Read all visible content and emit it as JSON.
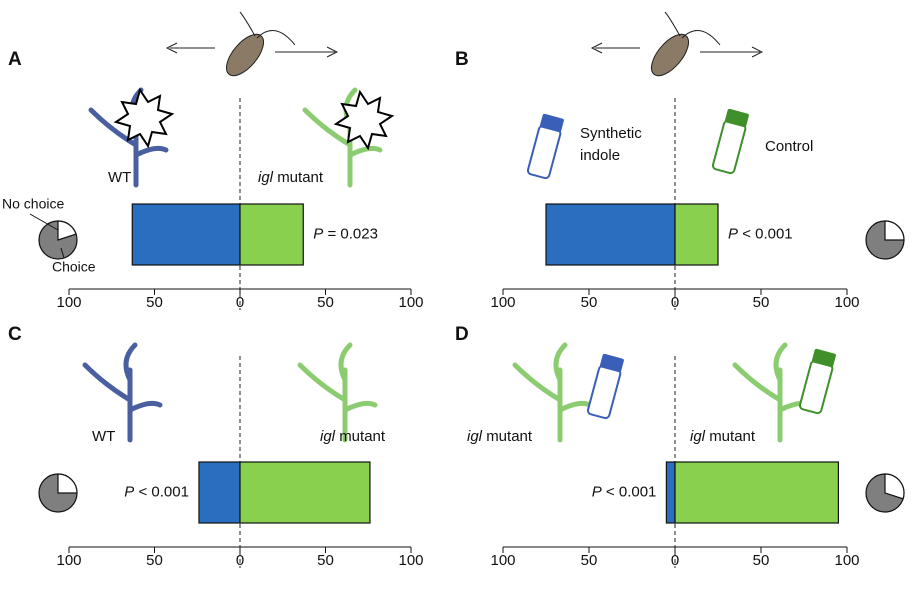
{
  "chart_data": [
    {
      "type": "diverging_bar",
      "panel": "A",
      "series": [
        {
          "name": "WT",
          "color": "#2a6ebf",
          "values": [
            63
          ]
        },
        {
          "name_prefix": "igl",
          "name": "mutant",
          "color": "#88d04e",
          "values": [
            37
          ]
        }
      ],
      "p_prefix": "P",
      "p_label": "= 0.023",
      "pie_labels": [
        "No choice",
        "Choice"
      ],
      "pie_values": [
        20,
        80
      ],
      "xlim": [
        -100,
        100
      ],
      "xticks": [
        {
          "value": -100,
          "label": "100"
        },
        {
          "value": -50,
          "label": "50"
        },
        0,
        50,
        100
      ]
    },
    {
      "type": "diverging_bar",
      "panel": "B",
      "series": [
        {
          "name": "Synthetic",
          "name_line2": "indole",
          "color": "#2a6ebf",
          "values": [
            75
          ]
        },
        {
          "name": "Control",
          "color": "#88d04e",
          "values": [
            25
          ]
        }
      ],
      "p_prefix": "P",
      "p_label": "< 0.001",
      "pie_values": [
        25,
        75
      ],
      "xlim": [
        -100,
        100
      ],
      "xticks": [
        {
          "value": -100,
          "label": "100"
        },
        {
          "value": -50,
          "label": "50"
        },
        0,
        50,
        100
      ]
    },
    {
      "type": "diverging_bar",
      "panel": "C",
      "series": [
        {
          "name": "WT",
          "color": "#2a6ebf",
          "values": [
            24
          ]
        },
        {
          "name_prefix": "igl",
          "name": "mutant",
          "color": "#88d04e",
          "values": [
            76
          ]
        }
      ],
      "p_prefix": "P",
      "p_label": "< 0.001",
      "pie_values": [
        25,
        75
      ],
      "xlim": [
        -100,
        100
      ],
      "xticks": [
        {
          "value": -100,
          "label": "100"
        },
        {
          "value": -50,
          "label": "50"
        },
        0,
        50,
        100
      ]
    },
    {
      "type": "diverging_bar",
      "panel": "D",
      "series": [
        {
          "name_prefix": "igl",
          "name": "mutant",
          "color": "#2a6ebf",
          "values": [
            5
          ]
        },
        {
          "name_prefix": "igl",
          "name": "mutant",
          "color": "#88d04e",
          "values": [
            95
          ]
        }
      ],
      "p_prefix": "P",
      "p_label": "< 0.001",
      "pie_values": [
        30,
        70
      ],
      "xlim": [
        -100,
        100
      ],
      "xticks": [
        {
          "value": -100,
          "label": "100"
        },
        {
          "value": -50,
          "label": "50"
        },
        0,
        50,
        100
      ]
    }
  ]
}
